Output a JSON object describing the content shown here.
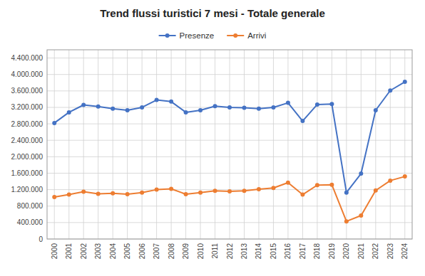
{
  "chart_data": {
    "type": "line",
    "title": "Trend flussi turistici 7 mesi - Totale generale",
    "x": [
      2000,
      2001,
      2002,
      2003,
      2004,
      2005,
      2006,
      2007,
      2008,
      2009,
      2010,
      2011,
      2012,
      2013,
      2014,
      2015,
      2016,
      2017,
      2018,
      2019,
      2020,
      2021,
      2022,
      2023,
      2024
    ],
    "series": [
      {
        "name": "Presenze",
        "color": "#4472C4",
        "values": [
          2820000,
          3080000,
          3260000,
          3220000,
          3170000,
          3130000,
          3200000,
          3380000,
          3340000,
          3080000,
          3130000,
          3230000,
          3200000,
          3190000,
          3170000,
          3200000,
          3310000,
          2870000,
          3270000,
          3280000,
          1130000,
          1590000,
          3130000,
          3610000,
          3820000
        ]
      },
      {
        "name": "Arrivi",
        "color": "#ED7D31",
        "values": [
          1020000,
          1080000,
          1150000,
          1100000,
          1110000,
          1090000,
          1130000,
          1200000,
          1220000,
          1090000,
          1130000,
          1170000,
          1160000,
          1170000,
          1210000,
          1240000,
          1370000,
          1080000,
          1310000,
          1320000,
          430000,
          570000,
          1180000,
          1420000,
          1520000
        ]
      }
    ],
    "xlim": [
      1999.5,
      2024.5
    ],
    "xticks": [
      2000,
      2001,
      2002,
      2003,
      2004,
      2005,
      2006,
      2007,
      2008,
      2009,
      2010,
      2011,
      2012,
      2013,
      2014,
      2015,
      2016,
      2017,
      2018,
      2019,
      2020,
      2021,
      2022,
      2023,
      2024
    ],
    "ylim": [
      0,
      4600000
    ],
    "yticks": [
      0,
      {
        "value": 400000,
        "label": "400.000"
      },
      {
        "value": 800000,
        "label": "800.000"
      },
      {
        "value": 1200000,
        "label": "1.200.000"
      },
      {
        "value": 1600000,
        "label": "1.600.000"
      },
      {
        "value": 2000000,
        "label": "2.000.000"
      },
      {
        "value": 2400000,
        "label": "2.400.000"
      },
      {
        "value": 2800000,
        "label": "2.800.000"
      },
      {
        "value": 3200000,
        "label": "3.200.000"
      },
      {
        "value": 3600000,
        "label": "3.600.000"
      },
      {
        "value": 4000000,
        "label": "4.000.000"
      },
      {
        "value": 4400000,
        "label": "4.400.000"
      }
    ],
    "grid": true,
    "legend": "top",
    "marker": "circle"
  }
}
